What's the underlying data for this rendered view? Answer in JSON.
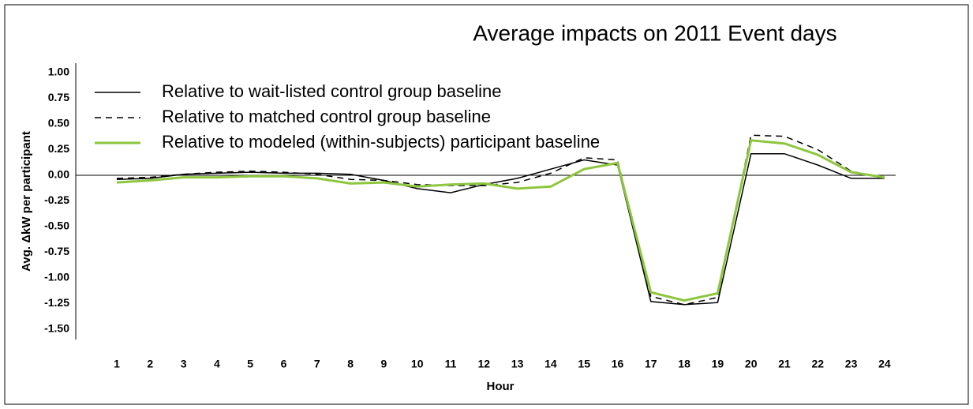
{
  "chart_data": {
    "type": "line",
    "title": "Average impacts on  2011 Event days",
    "y_label": "Avg. ΔkW per participant",
    "x_label": "Hour",
    "categories": [
      "1",
      "2",
      "3",
      "4",
      "5",
      "6",
      "7",
      "8",
      "9",
      "10",
      "11",
      "12",
      "13",
      "14",
      "15",
      "16",
      "17",
      "18",
      "19",
      "20",
      "21",
      "22",
      "23",
      "24"
    ],
    "series": [
      {
        "name": "Relative to wait-listed control group baseline",
        "color": "#000000",
        "style": "solid",
        "values": [
          -0.04,
          -0.03,
          0.01,
          0.02,
          0.03,
          0.02,
          0.02,
          0.01,
          -0.05,
          -0.13,
          -0.17,
          -0.09,
          -0.03,
          0.06,
          0.15,
          0.1,
          -1.23,
          -1.26,
          -1.24,
          0.21,
          0.21,
          0.1,
          -0.03,
          -0.03
        ]
      },
      {
        "name": "Relative to matched control group baseline",
        "color": "#000000",
        "style": "dashed",
        "values": [
          -0.03,
          -0.02,
          0.01,
          0.03,
          0.04,
          0.03,
          0.01,
          -0.04,
          -0.05,
          -0.09,
          -0.1,
          -0.1,
          -0.07,
          0.02,
          0.17,
          0.15,
          -1.18,
          -1.26,
          -1.19,
          0.39,
          0.38,
          0.25,
          0.04,
          -0.03
        ]
      },
      {
        "name": "Relative to modeled (within-subjects) participant baseline",
        "color": "#8dc63f",
        "style": "solid",
        "values": [
          -0.07,
          -0.05,
          -0.02,
          -0.02,
          -0.01,
          -0.01,
          -0.03,
          -0.08,
          -0.07,
          -0.11,
          -0.09,
          -0.08,
          -0.13,
          -0.11,
          0.06,
          0.12,
          -1.14,
          -1.22,
          -1.15,
          0.34,
          0.31,
          0.2,
          0.03,
          -0.02
        ]
      }
    ],
    "ylim": [
      -1.5,
      1.0
    ],
    "yticks": [
      {
        "value": 1.0,
        "label": "1.00"
      },
      {
        "value": 0.75,
        "label": "0.75"
      },
      {
        "value": 0.5,
        "label": "0.50"
      },
      {
        "value": 0.25,
        "label": "0.25"
      },
      {
        "value": 0,
        "label": "0.00"
      },
      {
        "value": -0.25,
        "label": "-0.25"
      },
      {
        "value": -0.5,
        "label": "-0.50"
      },
      {
        "value": -0.75,
        "label": "-0.75"
      },
      {
        "value": -1.0,
        "label": "-1.00"
      },
      {
        "value": -1.25,
        "label": "-1.25"
      },
      {
        "value": -1.5,
        "label": "-1.50"
      }
    ],
    "grid": false,
    "legend": "top-left"
  }
}
